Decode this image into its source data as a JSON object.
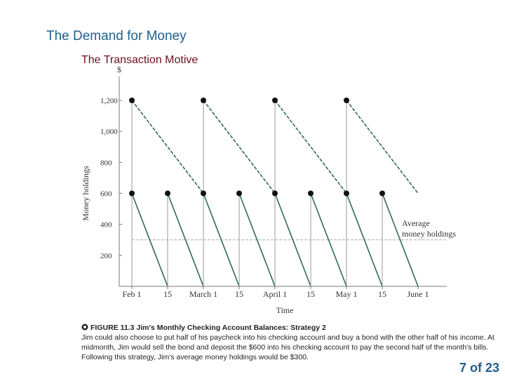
{
  "slide": {
    "title": "The Demand for Money",
    "subtitle": "The Transaction Motive",
    "page_number": "7 of 23"
  },
  "caption": {
    "icon": "figure-bullet-icon",
    "head": "FIGURE 11.3  Jim's Monthly Checking Account Balances:  Strategy 2",
    "body": "Jim could also choose to put half of his paycheck into his checking account and buy a bond with the other half of his income. At midmonth, Jim would sell the bond and deposit the $600 into his checking account to pay the second half of the month's bills. Following this strategy, Jim's average money holdings would be $300."
  },
  "colors": {
    "title": "#1f5f8b",
    "subtitle": "#6b1020",
    "series_line": "#2e6b5a",
    "bond_line": "#2e6b5a",
    "average_line": "#aaaaaa",
    "point": "#111111"
  },
  "chart_data": {
    "type": "line",
    "ylabel": "Money holdings",
    "xlabel": "Time",
    "yunit": "$",
    "ylim": [
      0,
      1300
    ],
    "xlim": [
      0,
      8.8
    ],
    "y_ticks": [
      200,
      400,
      600,
      800,
      1000,
      1200
    ],
    "y_tick_labels": [
      "200",
      "400",
      "600",
      "800",
      "1,000",
      "1,200"
    ],
    "x_ticks": [
      0,
      1,
      2,
      3,
      4,
      5,
      6,
      7,
      8
    ],
    "x_tick_labels": [
      "Feb 1",
      "15",
      "March 1",
      "15",
      "April 1",
      "15",
      "May 1",
      "15",
      "June 1"
    ],
    "series": [
      {
        "role": "checking",
        "points": [
          [
            0,
            600
          ],
          [
            1,
            0
          ],
          [
            1,
            600
          ],
          [
            2,
            0
          ],
          [
            2,
            600
          ],
          [
            3,
            0
          ],
          [
            3,
            600
          ],
          [
            4,
            0
          ],
          [
            4,
            600
          ],
          [
            5,
            0
          ],
          [
            5,
            600
          ],
          [
            6,
            0
          ],
          [
            6,
            600
          ],
          [
            7,
            0
          ],
          [
            7,
            600
          ],
          [
            8,
            0
          ]
        ]
      },
      {
        "role": "bond",
        "points": [
          [
            0,
            1200
          ],
          [
            0,
            600
          ],
          [
            2,
            1200
          ],
          [
            2,
            600
          ],
          [
            4,
            1200
          ],
          [
            4,
            600
          ],
          [
            6,
            1200
          ],
          [
            6,
            600
          ]
        ]
      }
    ],
    "markers": [
      [
        0,
        1200
      ],
      [
        2,
        1200
      ],
      [
        4,
        1200
      ],
      [
        6,
        1200
      ],
      [
        0,
        600
      ],
      [
        1,
        600
      ],
      [
        2,
        600
      ],
      [
        3,
        600
      ],
      [
        4,
        600
      ],
      [
        5,
        600
      ],
      [
        6,
        600
      ],
      [
        7,
        600
      ]
    ],
    "average": {
      "value": 300,
      "label_line1": "Average",
      "label_line2": "money holdings"
    }
  }
}
